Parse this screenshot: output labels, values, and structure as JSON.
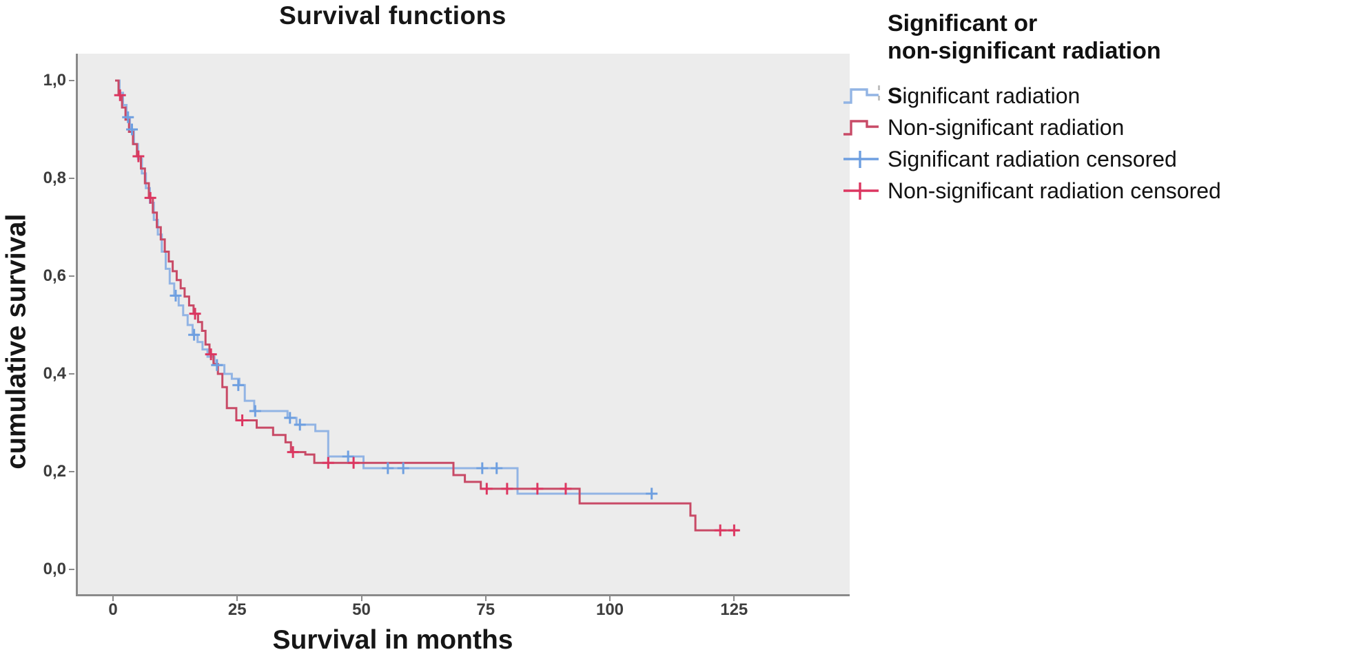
{
  "chart": {
    "title": "Survival functions",
    "x_axis_title": "Survival in months",
    "y_axis_title": "cumulative survival",
    "x_tick_labels": [
      "0",
      "25",
      "50",
      "75",
      "100",
      "125"
    ],
    "y_tick_labels": [
      "1,0",
      "0,8",
      "0,6",
      "0,4",
      "0,2",
      "0,0"
    ]
  },
  "legend": {
    "title_line1": "Significant or",
    "title_line2": "non-significant radiation",
    "items": [
      {
        "prefix": "S",
        "rest": "ignificant radiation",
        "swatch": "step",
        "series": 0
      },
      {
        "prefix": "",
        "rest": "Non-significant radiation",
        "swatch": "step",
        "series": 1
      },
      {
        "prefix": "",
        "rest": "Significant radiation censored",
        "swatch": "censored",
        "series": 0
      },
      {
        "prefix": "",
        "rest": "Non-significant radiation censored",
        "swatch": "censored",
        "series": 1
      }
    ]
  },
  "chart_data": {
    "type": "line",
    "variant": "kaplan_meier_step",
    "title": "Survival functions",
    "xlabel": "Survival in months",
    "ylabel": "cumulative survival",
    "xlim": [
      -7.5,
      147.5
    ],
    "ylim": [
      -0.05,
      1.055
    ],
    "x_ticks": [
      0,
      25,
      50,
      75,
      100,
      125
    ],
    "y_ticks": [
      1.0,
      0.8,
      0.6,
      0.4,
      0.2,
      0.0
    ],
    "grid": false,
    "plot_background": "#ececec",
    "axis_color": "#8a8a8a",
    "legend_position": "right",
    "series": [
      {
        "name": "Significant radiation",
        "color": "#92b4e4",
        "censor_color": "#6e9fe0",
        "steps": [
          [
            0,
            1.0
          ],
          [
            0.9,
            0.975
          ],
          [
            1.6,
            0.95
          ],
          [
            2.3,
            0.925
          ],
          [
            3.0,
            0.9
          ],
          [
            3.8,
            0.87
          ],
          [
            4.6,
            0.84
          ],
          [
            5.4,
            0.81
          ],
          [
            6.2,
            0.78
          ],
          [
            7.0,
            0.75
          ],
          [
            7.8,
            0.715
          ],
          [
            8.6,
            0.685
          ],
          [
            9.4,
            0.65
          ],
          [
            10.2,
            0.615
          ],
          [
            11.0,
            0.585
          ],
          [
            11.9,
            0.56
          ],
          [
            12.8,
            0.54
          ],
          [
            13.7,
            0.52
          ],
          [
            14.6,
            0.5
          ],
          [
            15.6,
            0.48
          ],
          [
            16.6,
            0.465
          ],
          [
            17.6,
            0.45
          ],
          [
            18.6,
            0.435
          ],
          [
            20.0,
            0.418
          ],
          [
            22.0,
            0.4
          ],
          [
            23.5,
            0.39
          ],
          [
            25.0,
            0.377
          ],
          [
            26.1,
            0.345
          ],
          [
            28.0,
            0.324
          ],
          [
            34.7,
            0.31
          ],
          [
            36.5,
            0.296
          ],
          [
            40.3,
            0.283
          ],
          [
            42.9,
            0.231
          ],
          [
            50.0,
            0.207
          ],
          [
            81.0,
            0.155
          ],
          [
            108.0,
            0.155
          ]
        ],
        "censored": [
          [
            2.6,
            0.925
          ],
          [
            3.4,
            0.9
          ],
          [
            12.2,
            0.56
          ],
          [
            15.9,
            0.48
          ],
          [
            20.5,
            0.418
          ],
          [
            24.8,
            0.377
          ],
          [
            28.2,
            0.324
          ],
          [
            35.2,
            0.31
          ],
          [
            37.2,
            0.296
          ],
          [
            46.9,
            0.231
          ],
          [
            54.9,
            0.207
          ],
          [
            58.0,
            0.207
          ],
          [
            73.9,
            0.207
          ],
          [
            76.8,
            0.207
          ],
          [
            108.0,
            0.155
          ]
        ]
      },
      {
        "name": "Non-significant radiation",
        "color": "#c84a66",
        "censor_color": "#dc3660",
        "steps": [
          [
            0,
            1.0
          ],
          [
            0.7,
            0.97
          ],
          [
            1.4,
            0.945
          ],
          [
            2.1,
            0.92
          ],
          [
            2.8,
            0.895
          ],
          [
            3.6,
            0.87
          ],
          [
            4.4,
            0.845
          ],
          [
            5.2,
            0.82
          ],
          [
            6.0,
            0.79
          ],
          [
            6.8,
            0.76
          ],
          [
            7.6,
            0.73
          ],
          [
            8.4,
            0.7
          ],
          [
            9.2,
            0.675
          ],
          [
            10.0,
            0.65
          ],
          [
            10.8,
            0.63
          ],
          [
            11.6,
            0.61
          ],
          [
            12.4,
            0.592
          ],
          [
            13.2,
            0.575
          ],
          [
            14.0,
            0.558
          ],
          [
            14.9,
            0.54
          ],
          [
            15.8,
            0.523
          ],
          [
            16.7,
            0.506
          ],
          [
            17.5,
            0.488
          ],
          [
            18.2,
            0.46
          ],
          [
            19.0,
            0.44
          ],
          [
            19.8,
            0.42
          ],
          [
            20.7,
            0.4
          ],
          [
            21.6,
            0.373
          ],
          [
            22.5,
            0.33
          ],
          [
            24.4,
            0.305
          ],
          [
            28.5,
            0.29
          ],
          [
            31.8,
            0.275
          ],
          [
            34.3,
            0.26
          ],
          [
            35.4,
            0.24
          ],
          [
            38.3,
            0.235
          ],
          [
            40.1,
            0.218
          ],
          [
            68.1,
            0.193
          ],
          [
            70.4,
            0.179
          ],
          [
            73.6,
            0.165
          ],
          [
            93.5,
            0.135
          ],
          [
            115.8,
            0.11
          ],
          [
            116.8,
            0.08
          ],
          [
            125.5,
            0.08
          ]
        ],
        "censored": [
          [
            1.0,
            0.97
          ],
          [
            4.7,
            0.845
          ],
          [
            7.1,
            0.76
          ],
          [
            16.1,
            0.523
          ],
          [
            19.3,
            0.44
          ],
          [
            25.6,
            0.305
          ],
          [
            35.8,
            0.24
          ],
          [
            42.9,
            0.218
          ],
          [
            48.0,
            0.218
          ],
          [
            74.8,
            0.165
          ],
          [
            78.9,
            0.165
          ],
          [
            85.0,
            0.165
          ],
          [
            90.7,
            0.165
          ],
          [
            121.8,
            0.08
          ],
          [
            124.6,
            0.08
          ]
        ]
      }
    ]
  }
}
